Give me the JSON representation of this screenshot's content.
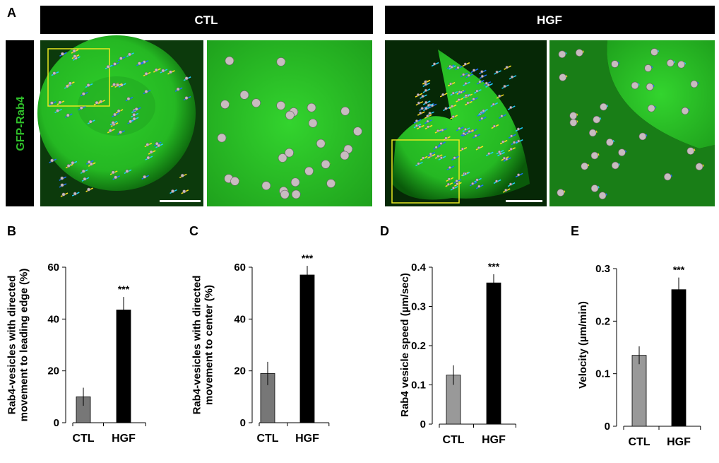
{
  "panel_a": {
    "label": "A",
    "headers": [
      "CTL",
      "HGF"
    ],
    "channel": "GFP-Rab4"
  },
  "chart_data": [
    {
      "type": "bar",
      "panel_label": "B",
      "ylabel": [
        "Rab4-vesicles with directed",
        "movement to leading edge (%)"
      ],
      "categories": [
        "CTL",
        "HGF"
      ],
      "values": [
        10,
        43.5
      ],
      "errors": [
        3.5,
        5
      ],
      "colors": [
        "#777777",
        "#000000"
      ],
      "annotation": "***",
      "ylim": [
        0,
        60
      ],
      "yticks": [
        0,
        20,
        40,
        60
      ]
    },
    {
      "type": "bar",
      "panel_label": "C",
      "ylabel": [
        "Rab4-vesicles with directed",
        "movement to center (%)"
      ],
      "categories": [
        "CTL",
        "HGF"
      ],
      "values": [
        19,
        57
      ],
      "errors": [
        4.5,
        3.5
      ],
      "colors": [
        "#777777",
        "#000000"
      ],
      "annotation": "***",
      "ylim": [
        0,
        60
      ],
      "yticks": [
        0,
        20,
        40,
        60
      ]
    },
    {
      "type": "bar",
      "panel_label": "D",
      "ylabel": [
        "Rab4 vesicle speed (µm/sec)"
      ],
      "categories": [
        "CTL",
        "HGF"
      ],
      "values": [
        0.125,
        0.36
      ],
      "errors": [
        0.025,
        0.022
      ],
      "colors": [
        "#999999",
        "#000000"
      ],
      "annotation": "***",
      "ylim": [
        0,
        0.4
      ],
      "yticks": [
        0,
        0.1,
        0.2,
        0.3,
        0.4
      ]
    },
    {
      "type": "bar",
      "panel_label": "E",
      "ylabel": [
        "Velocity (µm/min)"
      ],
      "categories": [
        "CTL",
        "HGF"
      ],
      "values": [
        0.135,
        0.26
      ],
      "errors": [
        0.017,
        0.023
      ],
      "colors": [
        "#999999",
        "#000000"
      ],
      "annotation": "***",
      "ylim": [
        0,
        0.3
      ],
      "yticks": [
        0,
        0.1,
        0.2,
        0.3
      ]
    }
  ]
}
